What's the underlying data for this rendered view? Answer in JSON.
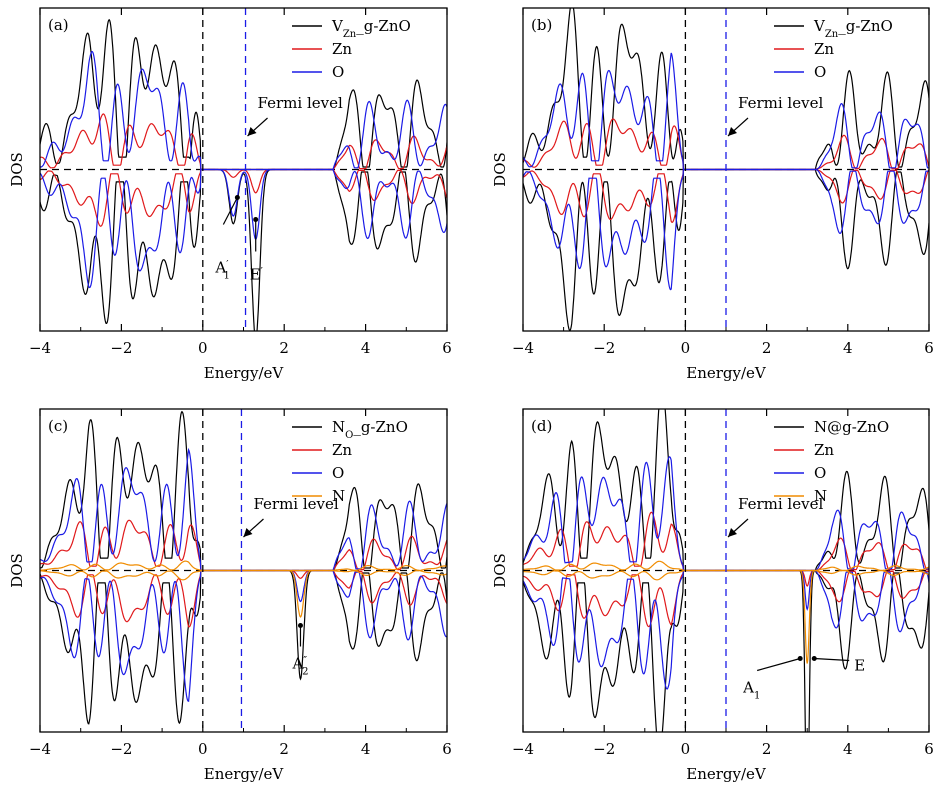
{
  "chart_data": [
    {
      "type": "line",
      "panel_label": "(a)",
      "xlabel": "Energy/eV",
      "ylabel": "DOS",
      "xlim": [
        -4,
        6
      ],
      "xticks": [
        "−4",
        "−2",
        "0",
        "2",
        "4",
        "6"
      ],
      "fermi_level_text": "Fermi level",
      "fermi_level_x": 1.05,
      "zero_line_x": 0,
      "legend": [
        {
          "main": "V",
          "sub": "Zn",
          "rest": "_g-ZnO",
          "color": "#000000"
        },
        {
          "main": "Zn",
          "sub": "",
          "rest": "",
          "color": "#e0191b"
        },
        {
          "main": "O",
          "sub": "",
          "rest": "",
          "color": "#1b1be6"
        }
      ],
      "annotations": [
        {
          "main": "A",
          "sub": "1",
          "sup": "′",
          "x": 0.8
        },
        {
          "main": "E",
          "sub": "",
          "sup": "′",
          "x": 1.3
        }
      ],
      "series": [
        {
          "name": "V_Zn_g-ZnO",
          "color": "#000000",
          "amp": 1.0,
          "seed": 1.3,
          "defect": [
            [
              0.75,
              0.35,
              0.1
            ],
            [
              1.3,
              1.1,
              0.1
            ]
          ]
        },
        {
          "name": "Zn",
          "color": "#e0191b",
          "amp": 0.35,
          "seed": 2.1,
          "defect": [
            [
              0.75,
              0.05,
              0.1
            ],
            [
              1.3,
              0.15,
              0.1
            ]
          ]
        },
        {
          "name": "O",
          "color": "#1b1be6",
          "amp": 0.7,
          "seed": 3.7,
          "defect": [
            [
              0.75,
              0.3,
              0.1
            ],
            [
              1.3,
              0.45,
              0.1
            ]
          ]
        }
      ]
    },
    {
      "type": "line",
      "panel_label": "(b)",
      "xlabel": "Energy/eV",
      "ylabel": "DOS",
      "xlim": [
        -4,
        6
      ],
      "xticks": [
        "−4",
        "−2",
        "0",
        "2",
        "4",
        "6"
      ],
      "fermi_level_text": "Fermi level",
      "fermi_level_x": 1.0,
      "zero_line_x": 0,
      "legend": [
        {
          "main": "V",
          "sub": "Zn",
          "rest": "_g-ZnO",
          "color": "#000000"
        },
        {
          "main": "Zn",
          "sub": "",
          "rest": "",
          "color": "#e0191b"
        },
        {
          "main": "O",
          "sub": "",
          "rest": "",
          "color": "#1b1be6"
        }
      ],
      "annotations": [],
      "series": [
        {
          "name": "V_Zn_g-ZnO",
          "color": "#000000",
          "amp": 1.0,
          "seed": 4.2,
          "defect": []
        },
        {
          "name": "Zn",
          "color": "#e0191b",
          "amp": 0.35,
          "seed": 5.5,
          "defect": []
        },
        {
          "name": "O",
          "color": "#1b1be6",
          "amp": 0.7,
          "seed": 6.1,
          "defect": []
        }
      ]
    },
    {
      "type": "line",
      "panel_label": "(c)",
      "xlabel": "Energy/eV",
      "ylabel": "DOS",
      "xlim": [
        -4,
        6
      ],
      "xticks": [
        "−4",
        "−2",
        "0",
        "2",
        "4",
        "6"
      ],
      "fermi_level_text": "Fermi level",
      "fermi_level_x": 0.95,
      "zero_line_x": 0,
      "legend": [
        {
          "main": "N",
          "sub": "O",
          "rest": "_g-ZnO",
          "color": "#000000"
        },
        {
          "main": "Zn",
          "sub": "",
          "rest": "",
          "color": "#e0191b"
        },
        {
          "main": "O",
          "sub": "",
          "rest": "",
          "color": "#1b1be6"
        },
        {
          "main": "N",
          "sub": "",
          "rest": "",
          "color": "#f08c00"
        }
      ],
      "annotations": [
        {
          "main": "A",
          "sub": "2",
          "sup": "″",
          "x": 2.4
        }
      ],
      "series": [
        {
          "name": "N_O_g-ZnO",
          "color": "#000000",
          "amp": 1.0,
          "seed": 7.3,
          "defect": [
            [
              2.4,
              0.7,
              0.08
            ]
          ]
        },
        {
          "name": "Zn",
          "color": "#e0191b",
          "amp": 0.35,
          "seed": 8.9,
          "defect": [
            [
              2.4,
              0.05,
              0.08
            ]
          ]
        },
        {
          "name": "O",
          "color": "#1b1be6",
          "amp": 0.7,
          "seed": 9.4,
          "defect": [
            [
              2.4,
              0.2,
              0.08
            ]
          ]
        },
        {
          "name": "N",
          "color": "#f08c00",
          "amp": 0.05,
          "seed": 10.2,
          "defect": [
            [
              2.4,
              0.3,
              0.08
            ]
          ]
        }
      ]
    },
    {
      "type": "line",
      "panel_label": "(d)",
      "xlabel": "Energy/eV",
      "ylabel": "DOS",
      "xlim": [
        -4,
        6
      ],
      "xticks": [
        "−4",
        "−2",
        "0",
        "2",
        "4",
        "6"
      ],
      "fermi_level_text": "Fermi level",
      "fermi_level_x": 1.0,
      "zero_line_x": 0,
      "legend": [
        {
          "main": "N@g-ZnO",
          "sub": "",
          "rest": "",
          "color": "#000000"
        },
        {
          "main": "Zn",
          "sub": "",
          "rest": "",
          "color": "#e0191b"
        },
        {
          "main": "O",
          "sub": "",
          "rest": "",
          "color": "#1b1be6"
        },
        {
          "main": "N",
          "sub": "",
          "rest": "",
          "color": "#f08c00"
        }
      ],
      "annotations": [
        {
          "main": "A",
          "sub": "1",
          "sup": "",
          "x": 2.95
        },
        {
          "main": "E",
          "sub": "",
          "sup": "",
          "x": 3.05
        }
      ],
      "series": [
        {
          "name": "N@g-ZnO",
          "color": "#000000",
          "amp": 1.0,
          "seed": 11.1,
          "defect": [
            [
              3.0,
              1.6,
              0.05
            ]
          ]
        },
        {
          "name": "Zn",
          "color": "#e0191b",
          "amp": 0.35,
          "seed": 12.6,
          "defect": [
            [
              3.0,
              0.1,
              0.05
            ]
          ]
        },
        {
          "name": "O",
          "color": "#1b1be6",
          "amp": 0.7,
          "seed": 13.3,
          "defect": [
            [
              3.0,
              0.25,
              0.05
            ]
          ]
        },
        {
          "name": "N",
          "color": "#f08c00",
          "amp": 0.05,
          "seed": 14.8,
          "defect": [
            [
              3.0,
              0.6,
              0.05
            ]
          ]
        }
      ]
    }
  ]
}
